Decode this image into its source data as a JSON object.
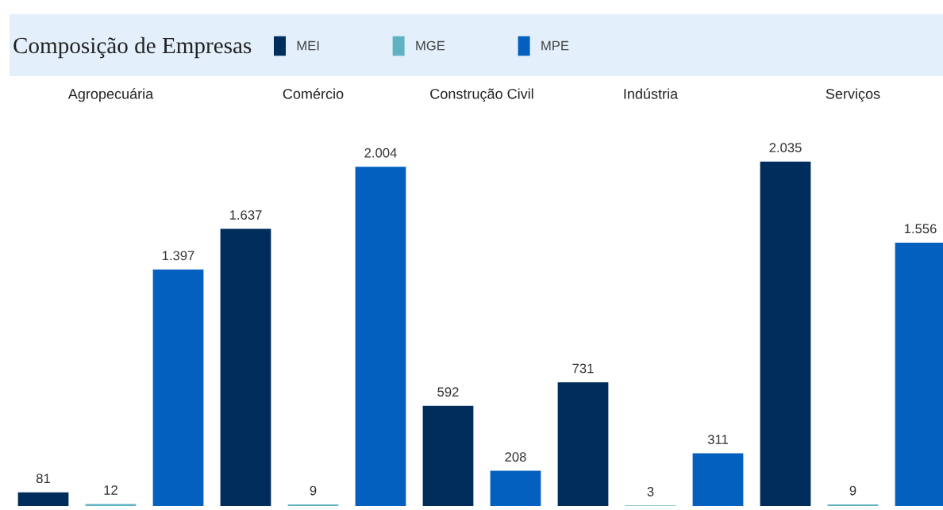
{
  "chart_data": {
    "type": "bar",
    "title": "Composição de Empresas",
    "legend": "top",
    "categories": [
      "Agropecuária",
      "Comércio",
      "Construção Civil",
      "Indústria",
      "Serviços"
    ],
    "series": [
      {
        "name": "MEI",
        "color": "#002d5b",
        "values": [
          81,
          1637,
          592,
          731,
          2035
        ],
        "value_labels": [
          "81",
          "1.637",
          "592",
          "731",
          "2.035"
        ]
      },
      {
        "name": "MGE",
        "color": "#5fb2c2",
        "values": [
          12,
          9,
          null,
          3,
          9
        ],
        "value_labels": [
          "12",
          "9",
          null,
          "3",
          "9"
        ]
      },
      {
        "name": "MPE",
        "color": "#0460bf",
        "values": [
          1397,
          2004,
          208,
          311,
          1556
        ],
        "value_labels": [
          "1.397",
          "2.004",
          "208",
          "311",
          "1.556"
        ]
      }
    ]
  }
}
